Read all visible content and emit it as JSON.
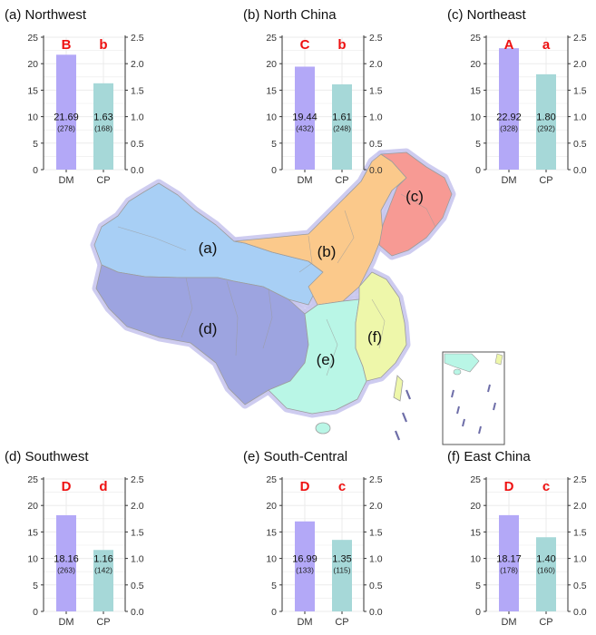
{
  "figure": {
    "map_labels": [
      "(a)",
      "(b)",
      "(c)",
      "(d)",
      "(e)",
      "(f)"
    ]
  },
  "colors": {
    "dm_bar": "#b3a8f7",
    "cp_bar": "#a6d8d8",
    "letter": "#ee1111",
    "axis": "#333333",
    "grid": "#ebebeb",
    "region_a": "#a8cff5",
    "region_b": "#fbc98b",
    "region_c": "#f79a94",
    "region_d": "#9da4e0",
    "region_e": "#b9f6e6",
    "region_f": "#eef7aa"
  },
  "chart_data": [
    {
      "type": "bar",
      "title": "(a) Northwest",
      "categories": [
        "DM",
        "CP"
      ],
      "values": [
        21.69,
        1.63
      ],
      "value_labels": [
        "21.69",
        "1.63"
      ],
      "counts": [
        "(278)",
        "(168)"
      ],
      "letters": [
        "B",
        "b"
      ],
      "ylim_left": [
        0,
        25
      ],
      "ylim_right": [
        0,
        2.5
      ],
      "yticks_left": [
        "0",
        "5",
        "10",
        "15",
        "20",
        "25"
      ],
      "yticks_right": [
        "0.0",
        "0.5",
        "1.0",
        "1.5",
        "2.0",
        "2.5"
      ]
    },
    {
      "type": "bar",
      "title": "(b) North China",
      "categories": [
        "DM",
        "CP"
      ],
      "values": [
        19.44,
        1.61
      ],
      "value_labels": [
        "19.44",
        "1.61"
      ],
      "counts": [
        "(432)",
        "(248)"
      ],
      "letters": [
        "C",
        "b"
      ],
      "ylim_left": [
        0,
        25
      ],
      "ylim_right": [
        0,
        2.5
      ],
      "yticks_left": [
        "0",
        "5",
        "10",
        "15",
        "20",
        "25"
      ],
      "yticks_right": [
        "0.0",
        "0.5",
        "1.0",
        "1.5",
        "2.0",
        "2.5"
      ]
    },
    {
      "type": "bar",
      "title": "(c) Northeast",
      "categories": [
        "DM",
        "CP"
      ],
      "values": [
        22.92,
        1.8
      ],
      "value_labels": [
        "22.92",
        "1.80"
      ],
      "counts": [
        "(328)",
        "(292)"
      ],
      "letters": [
        "A",
        "a"
      ],
      "ylim_left": [
        0,
        25
      ],
      "ylim_right": [
        0,
        2.5
      ],
      "yticks_left": [
        "0",
        "5",
        "10",
        "15",
        "20",
        "25"
      ],
      "yticks_right": [
        "0.0",
        "0.5",
        "1.0",
        "1.5",
        "2.0",
        "2.5"
      ]
    },
    {
      "type": "bar",
      "title": "(d) Southwest",
      "categories": [
        "DM",
        "CP"
      ],
      "values": [
        18.16,
        1.16
      ],
      "value_labels": [
        "18.16",
        "1.16"
      ],
      "counts": [
        "(263)",
        "(142)"
      ],
      "letters": [
        "D",
        "d"
      ],
      "ylim_left": [
        0,
        25
      ],
      "ylim_right": [
        0,
        2.5
      ],
      "yticks_left": [
        "0",
        "5",
        "10",
        "15",
        "20",
        "25"
      ],
      "yticks_right": [
        "0.0",
        "0.5",
        "1.0",
        "1.5",
        "2.0",
        "2.5"
      ]
    },
    {
      "type": "bar",
      "title": "(e) South-Central",
      "categories": [
        "DM",
        "CP"
      ],
      "values": [
        16.99,
        1.35
      ],
      "value_labels": [
        "16.99",
        "1.35"
      ],
      "counts": [
        "(133)",
        "(115)"
      ],
      "letters": [
        "D",
        "c"
      ],
      "ylim_left": [
        0,
        25
      ],
      "ylim_right": [
        0,
        2.5
      ],
      "yticks_left": [
        "0",
        "5",
        "10",
        "15",
        "20",
        "25"
      ],
      "yticks_right": [
        "0.0",
        "0.5",
        "1.0",
        "1.5",
        "2.0",
        "2.5"
      ]
    },
    {
      "type": "bar",
      "title": "(f) East China",
      "categories": [
        "DM",
        "CP"
      ],
      "values": [
        18.17,
        1.4
      ],
      "value_labels": [
        "18.17",
        "1.40"
      ],
      "counts": [
        "(178)",
        "(160)"
      ],
      "letters": [
        "D",
        "c"
      ],
      "ylim_left": [
        0,
        25
      ],
      "ylim_right": [
        0,
        2.5
      ],
      "yticks_left": [
        "0",
        "5",
        "10",
        "15",
        "20",
        "25"
      ],
      "yticks_right": [
        "0.0",
        "0.5",
        "1.0",
        "1.5",
        "2.0",
        "2.5"
      ]
    }
  ]
}
